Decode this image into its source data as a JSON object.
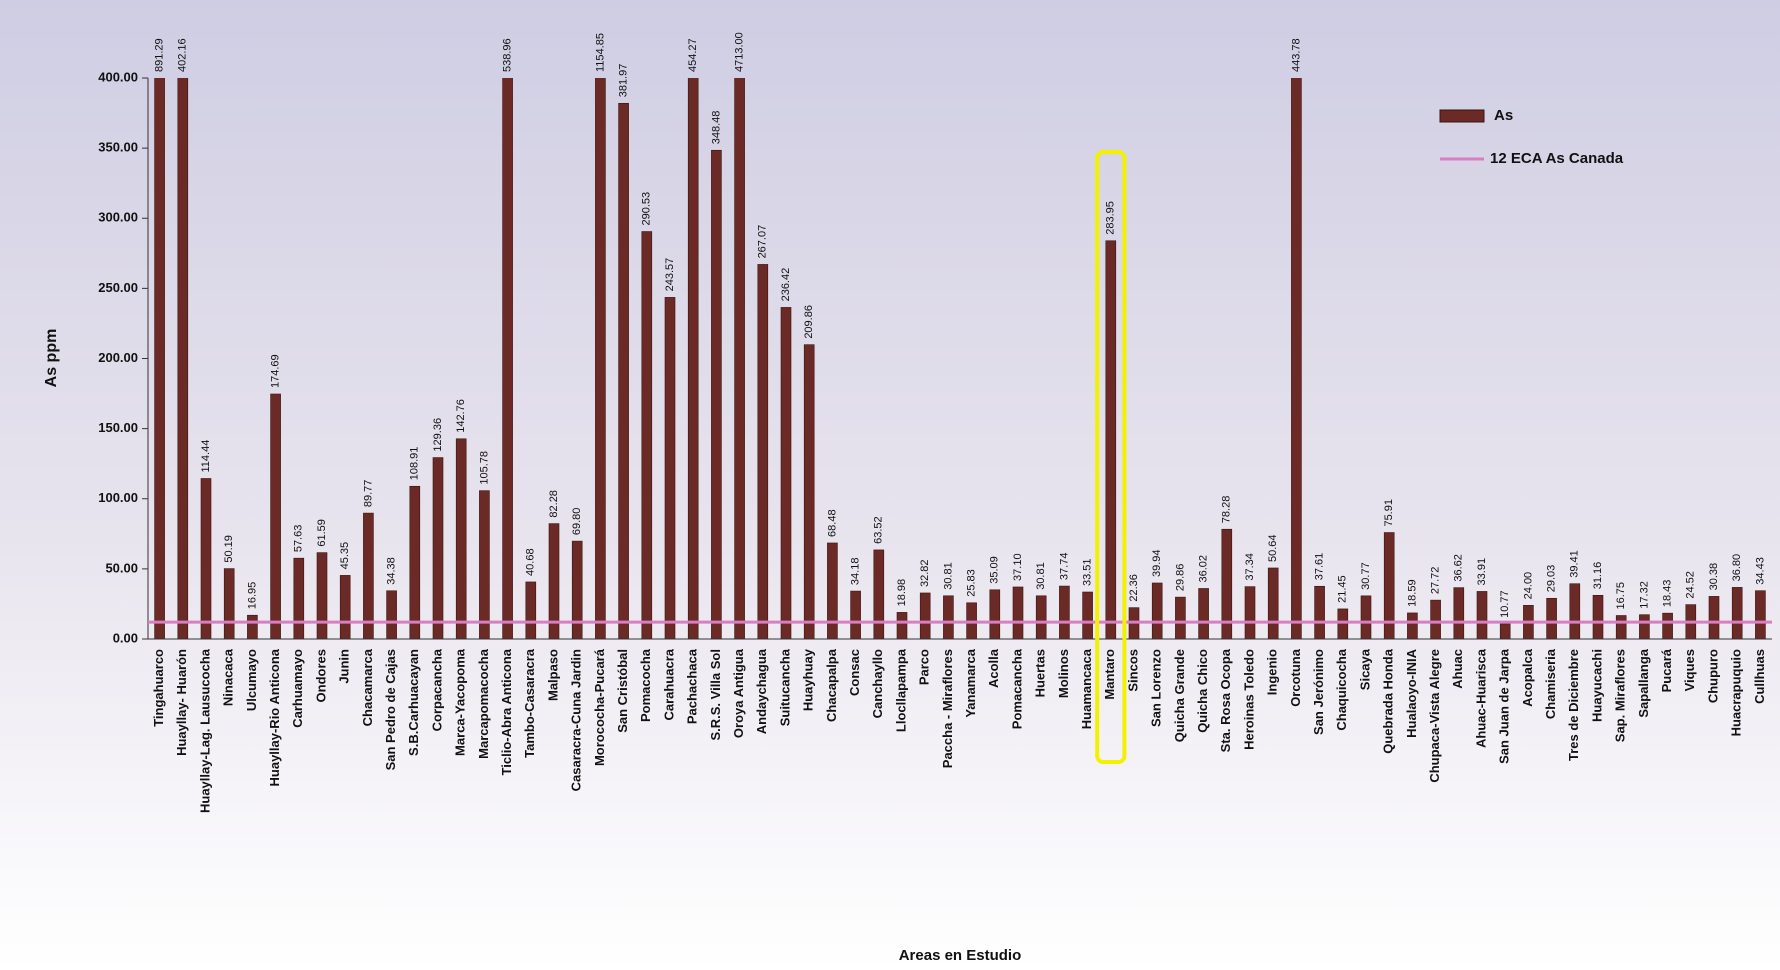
{
  "chart_data": {
    "type": "bar",
    "x_label": "Areas en Estudio",
    "y_label": "As ppm",
    "categories": [
      "Tingahuarco",
      "Huayllay- Huarón",
      "Huayllay-Lag. Lausucocha",
      "Ninacaca",
      "Ulcumayo",
      "Huayllay-Rio Anticona",
      "Carhuamayo",
      "Ondores",
      "Junin",
      "Chacamarca",
      "San Pedro de Cajas",
      "S.B.Carhuacayan",
      "Corpacancha",
      "Marca-Yacopoma",
      "Marcapomacocha",
      "Ticlio-Abra Anticona",
      "Tambo-Casaracra",
      "Malpaso",
      "Casaracra-Cuna Jardin",
      "Morococha-Pucará",
      "San Cristóbal",
      "Pomacocha",
      "Carahuacra",
      "Pachachaca",
      "S.R.S. Villa Sol",
      "Oroya Antigua",
      "Andaychagua",
      "Suitucancha",
      "Huayhuay",
      "Chacapalpa",
      "Consac",
      "Canchayllo",
      "Llocllapampa",
      "Parco",
      "Paccha - Miraflores",
      "Yanamarca",
      "Acolla",
      "Pomacancha",
      "Huertas",
      "Molinos",
      "Huamancaca",
      "Mantaro",
      "Sincos",
      "San Lorenzo",
      "Quicha Grande",
      "Quicha Chico",
      "Sta. Rosa Ocopa",
      "Heroinas Toledo",
      "Ingenio",
      "Orcotuna",
      "San Jerónimo",
      "Chaquicocha",
      "Sicaya",
      "Quebrada Honda",
      "Hualaoyo-INIA",
      "Chupaca-Vista Alegre",
      "Ahuac",
      "Ahuac-Huarisca",
      "San Juan de Jarpa",
      "Acopalca",
      "Chamiseria",
      "Tres de Diciembre",
      "Huayucachi",
      "Sap. Miraflores",
      "Sapallanga",
      "Pucará",
      "Viques",
      "Chupuro",
      "Huacrapuquio",
      "Cullhuas"
    ],
    "series": [
      {
        "name": "As",
        "color": "#6b2a26",
        "values": [
          891.29,
          402.16,
          114.44,
          50.19,
          16.95,
          174.69,
          57.63,
          61.59,
          45.35,
          89.77,
          34.38,
          108.91,
          129.36,
          142.76,
          105.78,
          538.96,
          40.68,
          82.28,
          69.8,
          1154.85,
          381.97,
          290.53,
          243.57,
          454.27,
          348.48,
          4713,
          267.07,
          236.42,
          209.86,
          68.48,
          34.18,
          63.52,
          18.98,
          32.82,
          30.81,
          25.83,
          35.09,
          37.1,
          30.81,
          37.74,
          33.51,
          283.95,
          22.36,
          39.94,
          29.86,
          36.02,
          78.28,
          37.34,
          50.64,
          443.78,
          37.61,
          21.45,
          30.77,
          75.91,
          18.59,
          27.72,
          36.62,
          33.91,
          10.77,
          24,
          29.03,
          39.41,
          31.16,
          16.75,
          17.32,
          18.43,
          24.52,
          30.38,
          36.8,
          34.43
        ],
        "value_labels": [
          "891.29",
          "402.16",
          "114.44",
          "50.19",
          "16.95",
          "174.69",
          "57.63",
          "61.59",
          "45.35",
          "89.77",
          "34.38",
          "108.91",
          "129.36",
          "142.76",
          "105.78",
          "538.96",
          "40.68",
          "82.28",
          "69.80",
          "1154.85",
          "381.97",
          "290.53",
          "243.57",
          "454.27",
          "348.48",
          "4713.00",
          "267.07",
          "236.42",
          "209.86",
          "68.48",
          "34.18",
          "63.52",
          "18.98",
          "32.82",
          "30.81",
          "25.83",
          "35.09",
          "37.10",
          "30.81",
          "37.74",
          "33.51",
          "283.95",
          "22.36",
          "39.94",
          "29.86",
          "36.02",
          "78.28",
          "37.34",
          "50.64",
          "443.78",
          "37.61",
          "21.45",
          "30.77",
          "75.91",
          "18.59",
          "27.72",
          "36.62",
          "33.91",
          "10.77",
          "24.00",
          "29.03",
          "39.41",
          "31.16",
          "16.75",
          "17.32",
          "18.43",
          "24.52",
          "30.38",
          "36.80",
          "34.43"
        ]
      }
    ],
    "reference_line": {
      "name": "12 ECA As Canada",
      "value": 12,
      "color": "#d77fc0"
    },
    "ylim": [
      0,
      400
    ],
    "yticks": [
      {
        "value": 0,
        "label": "0.00"
      },
      {
        "value": 50,
        "label": "50.00"
      },
      {
        "value": 100,
        "label": "100.00"
      },
      {
        "value": 150,
        "label": "150.00"
      },
      {
        "value": 200,
        "label": "200.00"
      },
      {
        "value": 250,
        "label": "250.00"
      },
      {
        "value": 300,
        "label": "300.00"
      },
      {
        "value": 350,
        "label": "350.00"
      },
      {
        "value": 400,
        "label": "400.00"
      }
    ],
    "legend": "upper right"
  }
}
